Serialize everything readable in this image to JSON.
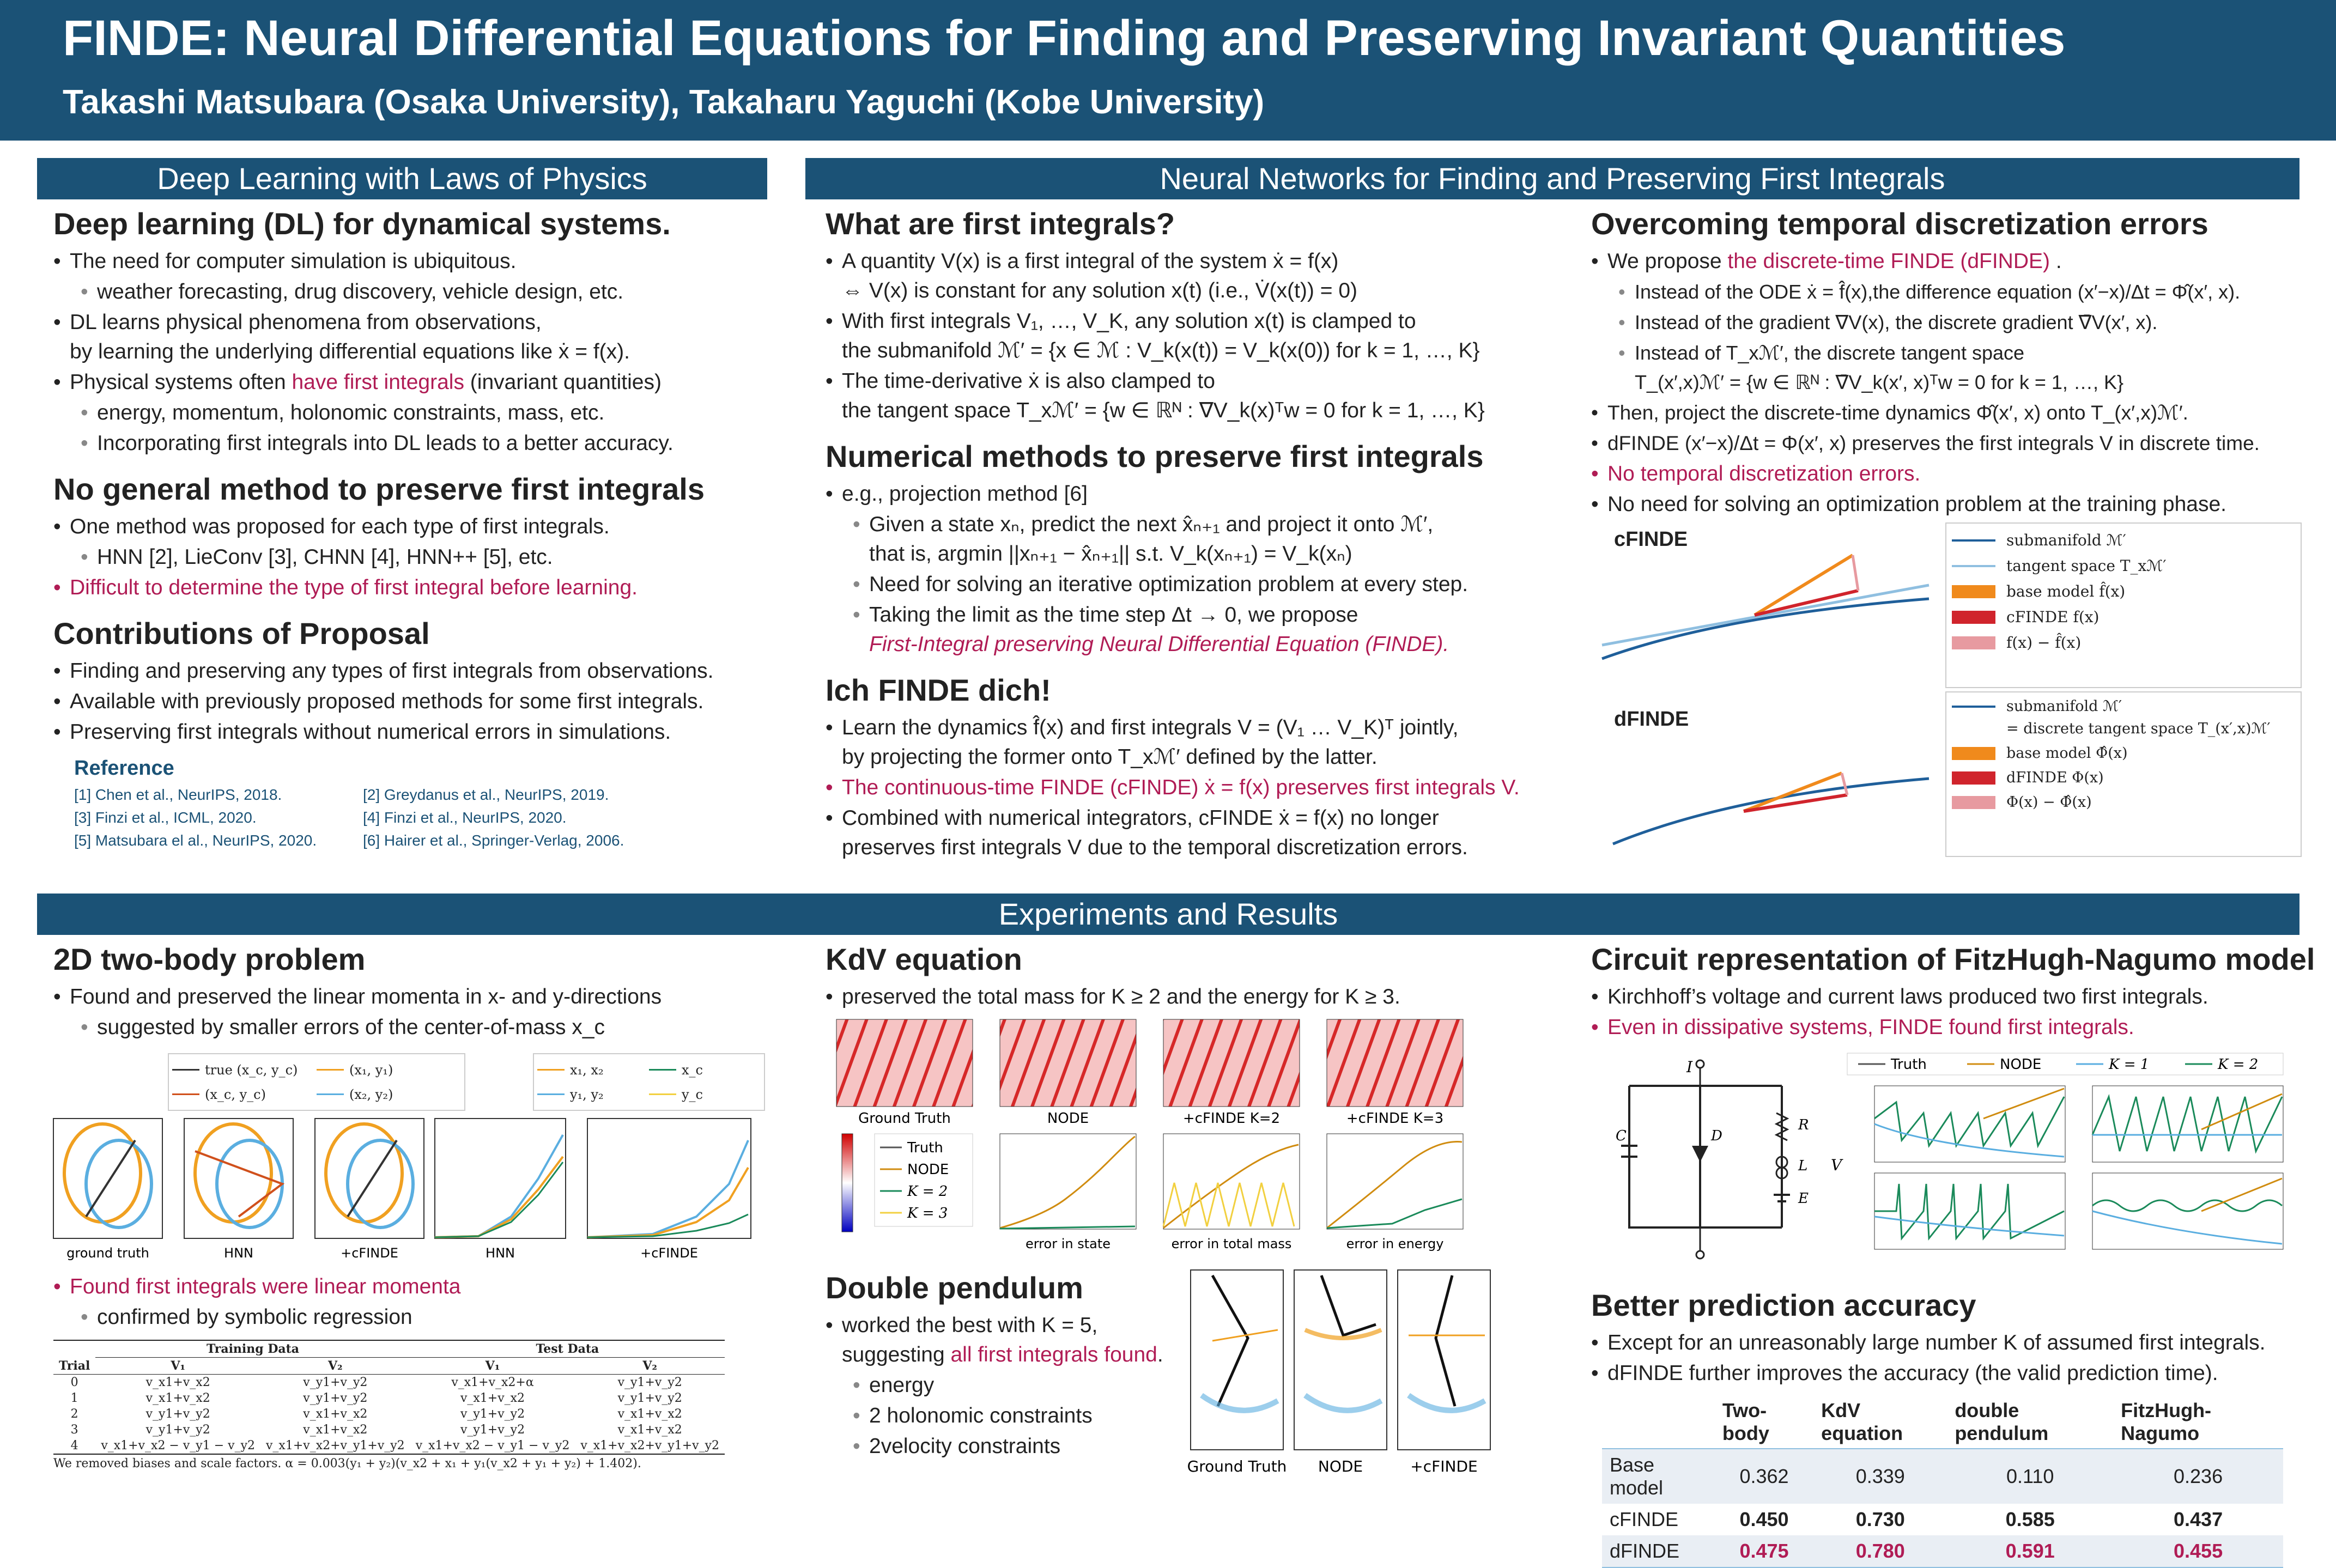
{
  "header": {
    "title": "FINDE: Neural Differential Equations for Finding and Preserving Invariant Quantities",
    "authors": "Takashi Matsubara (Osaka University), Takaharu Yaguchi (Kobe University)"
  },
  "sections": {
    "deep_learning": "Deep  Learning with Laws of Physics",
    "neural_networks": "Neural Networks for Finding and Preserving First Integrals",
    "experiments": "Experiments and Results"
  },
  "col1": {
    "h1": "Deep learning (DL) for dynamical systems.",
    "h1_items": [
      "The need for computer simulation is ubiquitous.",
      "weather forecasting, drug discovery, vehicle design, etc.",
      "DL learns physical phenomena from observations,",
      "by learning the underlying differential equations like ẋ = f(x).",
      "Physical systems often ",
      "have first integrals",
      " (invariant quantities)",
      "energy, momentum, holonomic constraints, mass, etc.",
      "Incorporating first integrals into DL leads to a better accuracy."
    ],
    "h2": "No general method to preserve first integrals",
    "h2_items": [
      "One method was proposed for each type of first integrals.",
      "HNN [2], LieConv [3], CHNN [4], HNN++ [5], etc.",
      "Difficult to determine the type of first integral before learning."
    ],
    "h3": "Contributions of Proposal",
    "h3_items": [
      "Finding and preserving any types of first integrals from observations.",
      "Available with previously proposed methods for some first integrals.",
      "Preserving first integrals without numerical errors in simulations."
    ],
    "ref_title": "Reference",
    "refs": [
      "[1] Chen et al., NeurIPS, 2018.",
      "[2] Greydanus et al., NeurIPS, 2019.",
      "[3] Finzi et al., ICML, 2020.",
      "[4] Finzi et al., NeurIPS, 2020.",
      "[5] Matsubara el al., NeurIPS, 2020.",
      "[6] Hairer et al., Springer-Verlag, 2006."
    ]
  },
  "col2": {
    "h1": "What are first integrals?",
    "h1_items": [
      "A quantity V(x) is a first integral of the system ẋ = f(x)",
      "⇔ V(x) is constant for any solution x(t) (i.e., V̇(x(t)) = 0)",
      "With first integrals V₁, …, V_K, any solution x(t) is clamped to",
      "the submanifold ℳ′ = {x ∈ ℳ : V_k(x(t)) = V_k(x(0)) for k = 1, …, K}",
      "The time-derivative ẋ is also clamped to",
      "the tangent space T_xℳ′ = {w ∈ ℝᴺ : ∇V_k(x)ᵀw = 0 for k = 1, …, K}"
    ],
    "h2": "Numerical methods to preserve first integrals",
    "h2_items": [
      "e.g., projection method [6]",
      "Given a state xₙ, predict the next x̂ₙ₊₁ and project it onto ℳ′,",
      "that is,  argmin ||xₙ₊₁ − x̂ₙ₊₁|| s.t. V_k(xₙ₊₁) = V_k(xₙ)",
      "Need for solving an iterative optimization problem at every step.",
      "Taking the limit as the time step Δt → 0, we propose",
      "First-Integral preserving Neural Differential Equation (FINDE)."
    ],
    "h3": "Ich FINDE dich!",
    "h3_items": [
      "Learn the dynamics f̂(x) and first integrals V = (V₁ … V_K)ᵀ jointly,",
      "by projecting the former onto T_xℳ′ defined by the latter.",
      "The continuous-time FINDE (cFINDE) ẋ = f(x) preserves first integrals V.",
      "Combined with numerical integrators, cFINDE ẋ = f(x) no longer",
      "preserves first integrals V due to the temporal discretization errors."
    ]
  },
  "col3": {
    "h1": "Overcoming temporal discretization errors",
    "items": [
      "We propose ",
      "the discrete-time FINDE (dFINDE)",
      " .",
      "Instead of the ODE ẋ = f̂(x),the difference equation (x′−x)/Δt = Φ̂(x′, x).",
      "Instead of the gradient ∇V(x), the discrete gradient ∇̄V(x′, x).",
      "Instead of T_xℳ′, the discrete tangent space",
      "T_(x′,x)ℳ′ = {w ∈ ℝᴺ : ∇̄V_k(x′, x)ᵀw = 0 for k = 1, …, K}",
      "Then, project the discrete-time dynamics Φ̂(x′, x) onto T_(x′,x)ℳ′.",
      "dFINDE (x′−x)/Δt = Φ(x′, x) preserves the first integrals V in discrete time.",
      "No temporal discretization errors.",
      "No need for solving an optimization problem at the training phase."
    ],
    "cfinde_label": "cFINDE",
    "dfinde_label": "dFINDE",
    "cfinde_legend": [
      "submanifold ℳ′",
      "tangent space T_xℳ′",
      "base model f̂(x)",
      "cFINDE f(x)",
      "f(x) − f̂(x)"
    ],
    "dfinde_legend": [
      "submanifold ℳ′",
      "= discrete tangent space T_(x′,x)ℳ′",
      "base model Φ̂(x)",
      "dFINDE Φ(x)",
      "Φ(x) − Φ̂(x)"
    ]
  },
  "exp1": {
    "h1": "2D two-body problem",
    "items": [
      "Found and preserved the linear momenta in x- and y-directions",
      "suggested by smaller errors of the center-of-mass x_c"
    ],
    "legend1": [
      "true (x_c, y_c)",
      "(x_c, y_c)",
      "(x₁, y₁)",
      "(x₂, y₂)"
    ],
    "legend2": [
      "x₁, x₂",
      "y₁, y₂",
      "x_c",
      "y_c"
    ],
    "panel_labels": [
      "ground truth",
      "HNN",
      "+cFINDE",
      "HNN",
      "+cFINDE"
    ],
    "h2": "Found first integrals were linear momenta",
    "h2_items": [
      "confirmed by symbolic regression"
    ],
    "table": {
      "group_headers": [
        "Training Data",
        "Test Data"
      ],
      "col_headers": [
        "Trial",
        "V₁",
        "V₂",
        "V₁",
        "V₂"
      ],
      "rows": [
        [
          "0",
          "v_x1+v_x2",
          "v_y1+v_y2",
          "v_x1+v_x2+α",
          "v_y1+v_y2"
        ],
        [
          "1",
          "v_x1+v_x2",
          "v_y1+v_y2",
          "v_x1+v_x2",
          "v_y1+v_y2"
        ],
        [
          "2",
          "v_y1+v_y2",
          "v_x1+v_x2",
          "v_y1+v_y2",
          "v_x1+v_x2"
        ],
        [
          "3",
          "v_y1+v_y2",
          "v_x1+v_x2",
          "v_y1+v_y2",
          "v_x1+v_x2"
        ],
        [
          "4",
          "v_x1+v_x2 − v_y1 − v_y2",
          "v_x1+v_x2+v_y1+v_y2",
          "v_x1+v_x2 − v_y1 − v_y2",
          "v_x1+v_x2+v_y1+v_y2"
        ]
      ],
      "note": "We removed biases and scale factors.  α = 0.003(y₁ + y₂)(v_x2 + x₁ + y₁(v_x2 + y₁ + y₂) + 1.402)."
    }
  },
  "exp2": {
    "h1": "KdV equation",
    "items": [
      "preserved the total mass for K ≥ 2  and the energy for K ≥ 3."
    ],
    "heatmap_labels": [
      "Ground Truth",
      "NODE",
      "+cFINDE K=2",
      "+cFINDE K=3"
    ],
    "error_labels": [
      "error in state",
      "error in total mass",
      "error in energy"
    ],
    "legend": [
      "Truth",
      "NODE",
      "K = 2",
      "K = 3"
    ],
    "h2": "Double pendulum",
    "h2_items": [
      "worked the best with K = 5,",
      "suggesting ",
      "all first integrals found",
      ".",
      "energy",
      "2 holonomic constraints",
      "2velocity constraints"
    ],
    "pendulum_labels": [
      "Ground Truth",
      "NODE",
      "+cFINDE"
    ]
  },
  "exp3": {
    "h1": "Circuit representation of FitzHugh-Nagumo model",
    "items": [
      "Kirchhoff’s voltage and current laws produced two first integrals.",
      "Even in dissipative systems, FINDE found first integrals."
    ],
    "circuit_labels": [
      "I",
      "C",
      "D",
      "R",
      "L",
      "E",
      "V"
    ],
    "legend": [
      "Truth",
      "NODE",
      "K = 1",
      "K = 2"
    ],
    "h2": "Better prediction accuracy",
    "h2_items": [
      "Except for an unreasonably large number K of assumed first integrals.",
      "dFINDE further improves the accuracy (the valid prediction time)."
    ],
    "results": {
      "headers": [
        "",
        "Two-body",
        "KdV equation",
        "double pendulum",
        "FitzHugh-Nagumo"
      ],
      "rows": [
        [
          "Base model",
          "0.362",
          "0.339",
          "0.110",
          "0.236"
        ],
        [
          "cFINDE",
          "0.450",
          "0.730",
          "0.585",
          "0.437"
        ],
        [
          "dFINDE",
          "0.475",
          "0.780",
          "0.591",
          "0.455"
        ]
      ]
    }
  },
  "chart_data": [
    {
      "type": "table",
      "title": "",
      "headers": [
        "",
        "Two-body",
        "KdV equation",
        "double pendulum",
        "FitzHugh-Nagumo"
      ],
      "rows": [
        [
          "Base model",
          0.362,
          0.339,
          0.11,
          0.236
        ],
        [
          "cFINDE",
          0.45,
          0.73,
          0.585,
          0.437
        ],
        [
          "dFINDE",
          0.475,
          0.78,
          0.591,
          0.455
        ]
      ]
    }
  ],
  "colors": {
    "header_bg": "#1b5276",
    "accent_red": "#b01c55",
    "orange": "#f08a1c",
    "blue": "#5aaee0",
    "green": "#1a8a5a",
    "yellow": "#f2d040"
  }
}
